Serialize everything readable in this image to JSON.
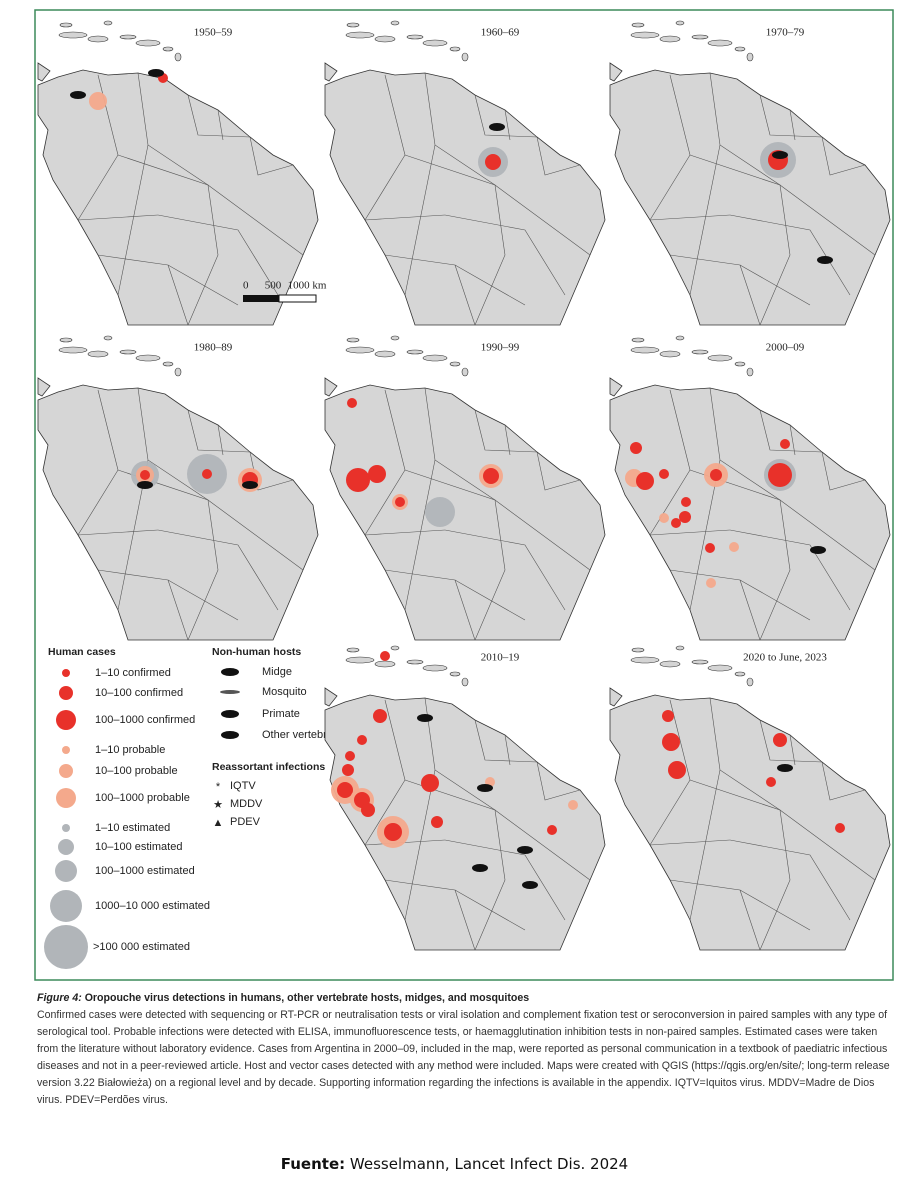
{
  "panels": [
    {
      "label": "1950–59"
    },
    {
      "label": "1960–69"
    },
    {
      "label": "1970–79"
    },
    {
      "label": "1980–89"
    },
    {
      "label": "1990–99"
    },
    {
      "label": "2000–09"
    },
    {
      "label": "2010–19"
    },
    {
      "label": "2020 to June, 2023"
    }
  ],
  "scale_bar": {
    "labels": [
      "0",
      "500",
      "1000 km"
    ]
  },
  "legend": {
    "human_cases": {
      "title": "Human cases",
      "items": [
        "1–10 confirmed",
        "10–100 confirmed",
        "100–1000 confirmed",
        "1–10 probable",
        "10–100 probable",
        "100–1000 probable",
        "1–10 estimated",
        "10–100 estimated",
        "100–1000 estimated",
        "1000–10 000 estimated",
        ">100 000 estimated"
      ]
    },
    "non_human_hosts": {
      "title": "Non-human hosts",
      "items": [
        "Midge",
        "Mosquito",
        "Primate",
        "Other vertebrate"
      ]
    },
    "reassortant": {
      "title": "Reassortant infections",
      "items": [
        "IQTV",
        "MDDV",
        "PDEV"
      ]
    }
  },
  "caption": {
    "figure_label": "Figure 4:",
    "title": "Oropouche virus detections in humans, other vertebrate hosts, midges, and mosquitoes",
    "body": "Confirmed cases were detected with sequencing or RT-PCR or neutralisation tests or viral isolation and complement fixation test or seroconversion in paired samples with any type of serological tool. Probable infections were detected with ELISA, immunofluorescence tests, or haemagglutination inhibition tests in non-paired samples. Estimated cases were taken from the literature without laboratory evidence. Cases from Argentina in 2000–09, included in the map, were reported as personal communication in a textbook of paediatric infectious diseases and not in a peer-reviewed article. Host and vector cases detected with any method were included. Maps were created with QGIS (https://qgis.org/en/site/; long-term release version 3.22 Białowieża) on a regional level and by decade. Supporting information regarding the infections is available in the appendix. IQTV=Iquitos virus. MDDV=Madre de Dios virus. PDEV=Perdões virus."
  },
  "source": {
    "label": "Fuente:",
    "text": "Wesselmann, Lancet Infect Dis. 2024"
  }
}
